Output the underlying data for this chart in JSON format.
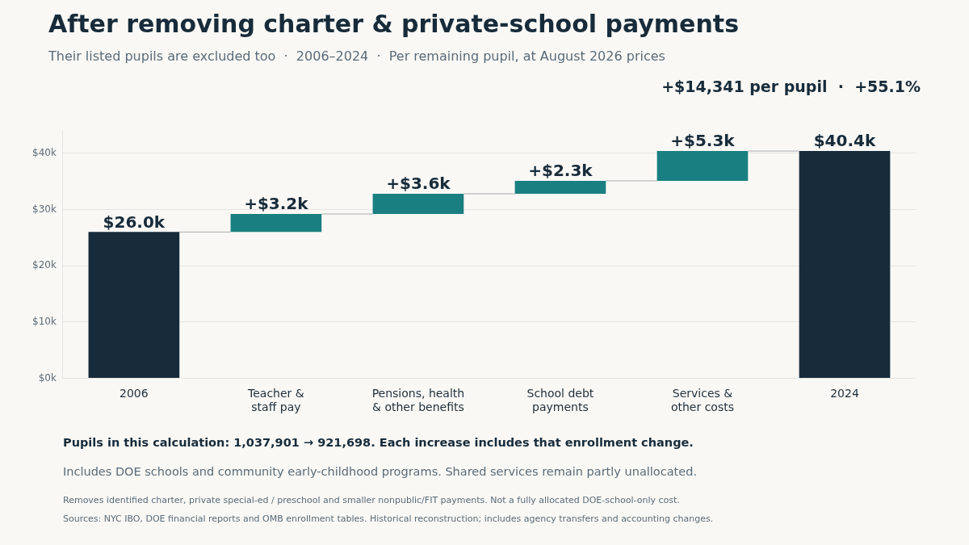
{
  "chart_data": {
    "type": "bar",
    "title": "After removing charter & private-school payments",
    "subtitle": "Their listed pupils are excluded too  ·  2006–2024  ·  Per remaining pupil, at August 2026 prices",
    "categories": [
      "2006",
      "Teacher & staff pay",
      "Pensions, health & other benefits",
      "School debt payments",
      "Services & other costs",
      "2024"
    ],
    "values": [
      26.0,
      3.2,
      3.6,
      2.3,
      5.3,
      40.4
    ],
    "base": [
      0,
      26.0,
      29.2,
      32.8,
      35.1,
      0
    ],
    "colors": [
      "#172b3a",
      "#1a7f80",
      "#1a7f80",
      "#1a7f80",
      "#1a7f80",
      "#172b3a"
    ],
    "value_labels": [
      "$26.0k",
      "+$3.2k",
      "+$3.6k",
      "+$2.3k",
      "+$5.3k",
      "$40.4k"
    ],
    "ylim": [
      0,
      44
    ],
    "yticks": [
      {
        "value": 0,
        "label": "$0k"
      },
      {
        "value": 10,
        "label": "$10k"
      },
      {
        "value": 20,
        "label": "$20k"
      },
      {
        "value": 30,
        "label": "$30k"
      },
      {
        "value": 40,
        "label": "$40k"
      }
    ],
    "grid": "y",
    "legend": false,
    "annotations": [
      "+$14,341 per pupil  ·  +55.1%",
      "Pupils in this calculation: 1,037,901 → 921,698. Each increase includes that enrollment change.",
      "Includes DOE schools and community early-childhood programs. Shared services remain partly unallocated.",
      "Removes identified charter, private special-ed / preschool and smaller nonpublic/FIT payments. Not a fully allocated DOE-school-only cost.",
      "Sources: NYC IBO, DOE financial reports and OMB enrollment tables. Historical reconstruction; includes agency transfers and accounting changes."
    ]
  }
}
